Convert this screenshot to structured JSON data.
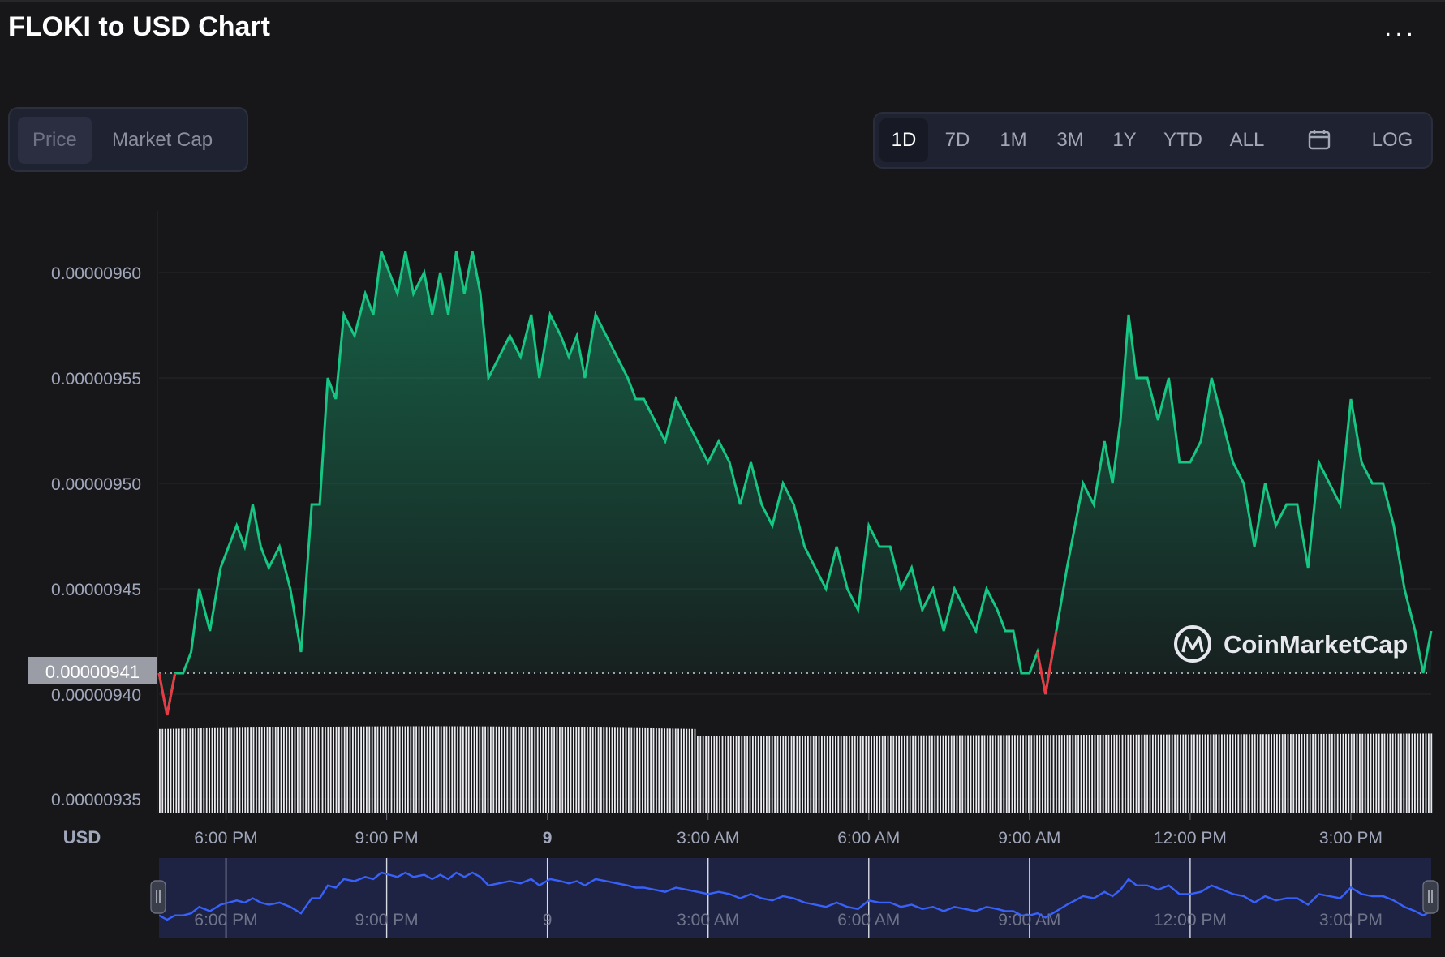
{
  "header": {
    "title": "FLOKI to USD Chart",
    "more_label": "···"
  },
  "tabs": [
    {
      "label": "Price",
      "active": true
    },
    {
      "label": "Market Cap",
      "active": false
    }
  ],
  "ranges": [
    {
      "label": "1D",
      "active": true
    },
    {
      "label": "7D",
      "active": false
    },
    {
      "label": "1M",
      "active": false
    },
    {
      "label": "3M",
      "active": false
    },
    {
      "label": "1Y",
      "active": false
    },
    {
      "label": "YTD",
      "active": false
    },
    {
      "label": "ALL",
      "active": false
    },
    {
      "label": "LOG",
      "active": false
    }
  ],
  "calendar_icon": "calendar-icon",
  "watermark": "CoinMarketCap",
  "colors": {
    "up": "#16c784",
    "down": "#ea3943",
    "navigator": "#3861fb",
    "background": "#17171a"
  },
  "chart_data": {
    "type": "line",
    "title": "FLOKI to USD Chart",
    "currency_label": "USD",
    "y_ticks": [
      "0.00000960",
      "0.00000955",
      "0.00000950",
      "0.00000945",
      "0.00000940",
      "0.00000935"
    ],
    "y_tick_values": [
      9.6e-06,
      9.55e-06,
      9.5e-06,
      9.45e-06,
      9.4e-06,
      9.35e-06
    ],
    "ylim": [
      9.35e-06,
      9.63e-06
    ],
    "x_ticks": [
      "6:00 PM",
      "9:00 PM",
      "9",
      "3:00 AM",
      "6:00 AM",
      "9:00 AM",
      "12:00 PM",
      "3:00 PM"
    ],
    "x_tick_hours": [
      18,
      21,
      24,
      27,
      30,
      33,
      36,
      39
    ],
    "xlim_hours": [
      16.75,
      40.5
    ],
    "reference_price": 9.41e-06,
    "reference_label": "0.00000941",
    "series": [
      {
        "x_hours": [
          16.75,
          16.9,
          17.05,
          17.2,
          17.35,
          17.5,
          17.7,
          17.9,
          18.05,
          18.2,
          18.35,
          18.5,
          18.65,
          18.8,
          19.0,
          19.2,
          19.4,
          19.6,
          19.75,
          19.9,
          20.05,
          20.2,
          20.4,
          20.6,
          20.75,
          20.9,
          21.05,
          21.2,
          21.35,
          21.5,
          21.7,
          21.85,
          22.0,
          22.15,
          22.3,
          22.45,
          22.6,
          22.75,
          22.9,
          23.1,
          23.3,
          23.5,
          23.7,
          23.85,
          24.05,
          24.25,
          24.4,
          24.55,
          24.7,
          24.9,
          25.1,
          25.3,
          25.5,
          25.65,
          25.8,
          26.0,
          26.2,
          26.4,
          26.6,
          26.8,
          27.0,
          27.2,
          27.4,
          27.6,
          27.8,
          28.0,
          28.2,
          28.4,
          28.6,
          28.8,
          29.0,
          29.2,
          29.4,
          29.6,
          29.8,
          30.0,
          30.2,
          30.4,
          30.6,
          30.8,
          31.0,
          31.2,
          31.4,
          31.6,
          31.8,
          32.0,
          32.2,
          32.4,
          32.55,
          32.7,
          32.85,
          33.0,
          33.15,
          33.3,
          33.5,
          33.7,
          33.85,
          34.0,
          34.2,
          34.4,
          34.55,
          34.7,
          34.85,
          35.0,
          35.2,
          35.4,
          35.6,
          35.8,
          36.0,
          36.2,
          36.4,
          36.6,
          36.8,
          37.0,
          37.2,
          37.4,
          37.6,
          37.8,
          38.0,
          38.2,
          38.4,
          38.6,
          38.8,
          39.0,
          39.2,
          39.4,
          39.6,
          39.8,
          40.0,
          40.2,
          40.35,
          40.5
        ],
        "y": [
          9.41e-06,
          9.39e-06,
          9.41e-06,
          9.41e-06,
          9.42e-06,
          9.45e-06,
          9.43e-06,
          9.46e-06,
          9.47e-06,
          9.48e-06,
          9.47e-06,
          9.49e-06,
          9.47e-06,
          9.46e-06,
          9.47e-06,
          9.45e-06,
          9.42e-06,
          9.49e-06,
          9.49e-06,
          9.55e-06,
          9.54e-06,
          9.58e-06,
          9.57e-06,
          9.59e-06,
          9.58e-06,
          9.61e-06,
          9.6e-06,
          9.59e-06,
          9.61e-06,
          9.59e-06,
          9.6e-06,
          9.58e-06,
          9.6e-06,
          9.58e-06,
          9.61e-06,
          9.59e-06,
          9.61e-06,
          9.59e-06,
          9.55e-06,
          9.56e-06,
          9.57e-06,
          9.56e-06,
          9.58e-06,
          9.55e-06,
          9.58e-06,
          9.57e-06,
          9.56e-06,
          9.57e-06,
          9.55e-06,
          9.58e-06,
          9.57e-06,
          9.56e-06,
          9.55e-06,
          9.54e-06,
          9.54e-06,
          9.53e-06,
          9.52e-06,
          9.54e-06,
          9.53e-06,
          9.52e-06,
          9.51e-06,
          9.52e-06,
          9.51e-06,
          9.49e-06,
          9.51e-06,
          9.49e-06,
          9.48e-06,
          9.5e-06,
          9.49e-06,
          9.47e-06,
          9.46e-06,
          9.45e-06,
          9.47e-06,
          9.45e-06,
          9.44e-06,
          9.48e-06,
          9.47e-06,
          9.47e-06,
          9.45e-06,
          9.46e-06,
          9.44e-06,
          9.45e-06,
          9.43e-06,
          9.45e-06,
          9.44e-06,
          9.43e-06,
          9.45e-06,
          9.44e-06,
          9.43e-06,
          9.43e-06,
          9.41e-06,
          9.41e-06,
          9.42e-06,
          9.4e-06,
          9.43e-06,
          9.46e-06,
          9.48e-06,
          9.5e-06,
          9.49e-06,
          9.52e-06,
          9.5e-06,
          9.53e-06,
          9.58e-06,
          9.55e-06,
          9.55e-06,
          9.53e-06,
          9.55e-06,
          9.51e-06,
          9.51e-06,
          9.52e-06,
          9.55e-06,
          9.53e-06,
          9.51e-06,
          9.5e-06,
          9.47e-06,
          9.5e-06,
          9.48e-06,
          9.49e-06,
          9.49e-06,
          9.46e-06,
          9.51e-06,
          9.5e-06,
          9.49e-06,
          9.54e-06,
          9.51e-06,
          9.5e-06,
          9.5e-06,
          9.48e-06,
          9.45e-06,
          9.43e-06,
          9.41e-06,
          9.43e-06
        ]
      }
    ],
    "volume": {
      "level_left": 0.93,
      "level_mid": 0.96,
      "level_right": 0.85,
      "level_end": 0.88
    }
  }
}
